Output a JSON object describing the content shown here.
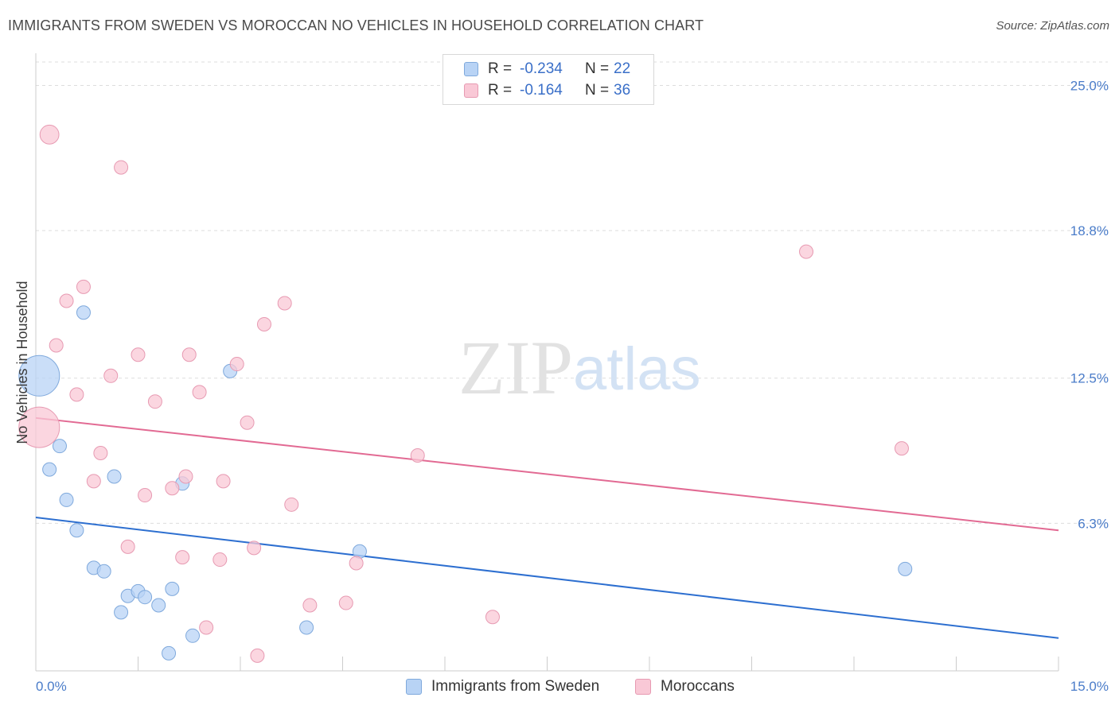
{
  "header": {
    "title": "IMMIGRANTS FROM SWEDEN VS MOROCCAN NO VEHICLES IN HOUSEHOLD CORRELATION CHART",
    "source": "Source: ZipAtlas.com"
  },
  "watermark": {
    "zip": "ZIP",
    "atlas": "atlas"
  },
  "colors": {
    "blue_fill": "#b8d3f5",
    "blue_stroke": "#7fa9dc",
    "blue_line": "#2d6fd0",
    "pink_fill": "#f9c8d6",
    "pink_stroke": "#e79ab2",
    "pink_line": "#e26a93",
    "tick_text": "#4a7cc9",
    "grid": "#dddddd"
  },
  "legend": {
    "rows": [
      {
        "label": "R =",
        "r": "-0.234",
        "n_label": "N =",
        "n": "22",
        "series": "blue"
      },
      {
        "label": "R =",
        "r": "-0.164",
        "n_label": "N =",
        "n": "36",
        "series": "pink"
      }
    ]
  },
  "bottom_legend": {
    "items": [
      {
        "label": "Immigrants from Sweden",
        "series": "blue"
      },
      {
        "label": "Moroccans",
        "series": "pink"
      }
    ]
  },
  "chart_data": {
    "type": "scatter",
    "title": "IMMIGRANTS FROM SWEDEN VS MOROCCAN NO VEHICLES IN HOUSEHOLD CORRELATION CHART",
    "xlabel": "",
    "ylabel": "No Vehicles in Household",
    "xlim": [
      0,
      15
    ],
    "ylim": [
      0,
      26
    ],
    "x_tick_labels": [
      {
        "value": 0,
        "label": "0.0%"
      },
      {
        "value": 15,
        "label": "15.0%"
      }
    ],
    "y_tick_labels": [
      {
        "value": 6.3,
        "label": "6.3%"
      },
      {
        "value": 12.5,
        "label": "12.5%"
      },
      {
        "value": 18.8,
        "label": "18.8%"
      },
      {
        "value": 25.0,
        "label": "25.0%"
      }
    ],
    "series": [
      {
        "name": "Immigrants from Sweden",
        "color": "blue",
        "points": [
          {
            "x": 0.05,
            "y": 12.6,
            "size": 3
          },
          {
            "x": 0.7,
            "y": 15.3,
            "size": 1
          },
          {
            "x": 0.35,
            "y": 9.6,
            "size": 1
          },
          {
            "x": 0.2,
            "y": 8.6,
            "size": 1
          },
          {
            "x": 0.45,
            "y": 7.3,
            "size": 1
          },
          {
            "x": 0.6,
            "y": 6.0,
            "size": 1
          },
          {
            "x": 1.15,
            "y": 8.3,
            "size": 1
          },
          {
            "x": 2.15,
            "y": 8.0,
            "size": 1
          },
          {
            "x": 2.85,
            "y": 12.8,
            "size": 1
          },
          {
            "x": 0.85,
            "y": 4.4,
            "size": 1
          },
          {
            "x": 1.0,
            "y": 4.25,
            "size": 1
          },
          {
            "x": 1.35,
            "y": 3.2,
            "size": 1
          },
          {
            "x": 1.5,
            "y": 3.4,
            "size": 1
          },
          {
            "x": 1.6,
            "y": 3.15,
            "size": 1
          },
          {
            "x": 1.8,
            "y": 2.8,
            "size": 1
          },
          {
            "x": 2.0,
            "y": 3.5,
            "size": 1
          },
          {
            "x": 1.25,
            "y": 2.5,
            "size": 1
          },
          {
            "x": 2.3,
            "y": 1.5,
            "size": 1
          },
          {
            "x": 1.95,
            "y": 0.75,
            "size": 1
          },
          {
            "x": 3.97,
            "y": 1.85,
            "size": 1
          },
          {
            "x": 4.75,
            "y": 5.1,
            "size": 1
          },
          {
            "x": 12.75,
            "y": 4.35,
            "size": 1
          }
        ],
        "trend": {
          "x0": 0,
          "y0": 6.55,
          "x1": 15,
          "y1": 1.4
        }
      },
      {
        "name": "Moroccans",
        "color": "pink",
        "points": [
          {
            "x": 0.05,
            "y": 10.4,
            "size": 3
          },
          {
            "x": 0.2,
            "y": 22.9,
            "size": 1.4
          },
          {
            "x": 1.25,
            "y": 21.5,
            "size": 1
          },
          {
            "x": 0.45,
            "y": 15.8,
            "size": 1
          },
          {
            "x": 0.7,
            "y": 16.4,
            "size": 1
          },
          {
            "x": 0.3,
            "y": 13.9,
            "size": 1
          },
          {
            "x": 1.1,
            "y": 12.6,
            "size": 1
          },
          {
            "x": 1.5,
            "y": 13.5,
            "size": 1
          },
          {
            "x": 2.25,
            "y": 13.5,
            "size": 1
          },
          {
            "x": 2.95,
            "y": 13.1,
            "size": 1
          },
          {
            "x": 3.35,
            "y": 14.8,
            "size": 1
          },
          {
            "x": 3.65,
            "y": 15.7,
            "size": 1
          },
          {
            "x": 0.6,
            "y": 11.8,
            "size": 1
          },
          {
            "x": 1.75,
            "y": 11.5,
            "size": 1
          },
          {
            "x": 2.4,
            "y": 11.9,
            "size": 1
          },
          {
            "x": 3.1,
            "y": 10.6,
            "size": 1
          },
          {
            "x": 0.95,
            "y": 9.3,
            "size": 1
          },
          {
            "x": 0.85,
            "y": 8.1,
            "size": 1
          },
          {
            "x": 1.6,
            "y": 7.5,
            "size": 1
          },
          {
            "x": 2.0,
            "y": 7.8,
            "size": 1
          },
          {
            "x": 2.2,
            "y": 8.3,
            "size": 1
          },
          {
            "x": 2.75,
            "y": 8.1,
            "size": 1
          },
          {
            "x": 3.75,
            "y": 7.1,
            "size": 1
          },
          {
            "x": 5.6,
            "y": 9.2,
            "size": 1
          },
          {
            "x": 1.35,
            "y": 5.3,
            "size": 1
          },
          {
            "x": 2.15,
            "y": 4.85,
            "size": 1
          },
          {
            "x": 2.7,
            "y": 4.75,
            "size": 1
          },
          {
            "x": 3.2,
            "y": 5.25,
            "size": 1
          },
          {
            "x": 4.7,
            "y": 4.6,
            "size": 1
          },
          {
            "x": 4.02,
            "y": 2.8,
            "size": 1
          },
          {
            "x": 4.55,
            "y": 2.9,
            "size": 1
          },
          {
            "x": 6.7,
            "y": 2.3,
            "size": 1
          },
          {
            "x": 2.5,
            "y": 1.85,
            "size": 1
          },
          {
            "x": 3.25,
            "y": 0.65,
            "size": 1
          },
          {
            "x": 11.3,
            "y": 17.9,
            "size": 1
          },
          {
            "x": 12.7,
            "y": 9.5,
            "size": 1
          }
        ],
        "trend": {
          "x0": 0,
          "y0": 10.8,
          "x1": 15,
          "y1": 6.0
        }
      }
    ]
  }
}
